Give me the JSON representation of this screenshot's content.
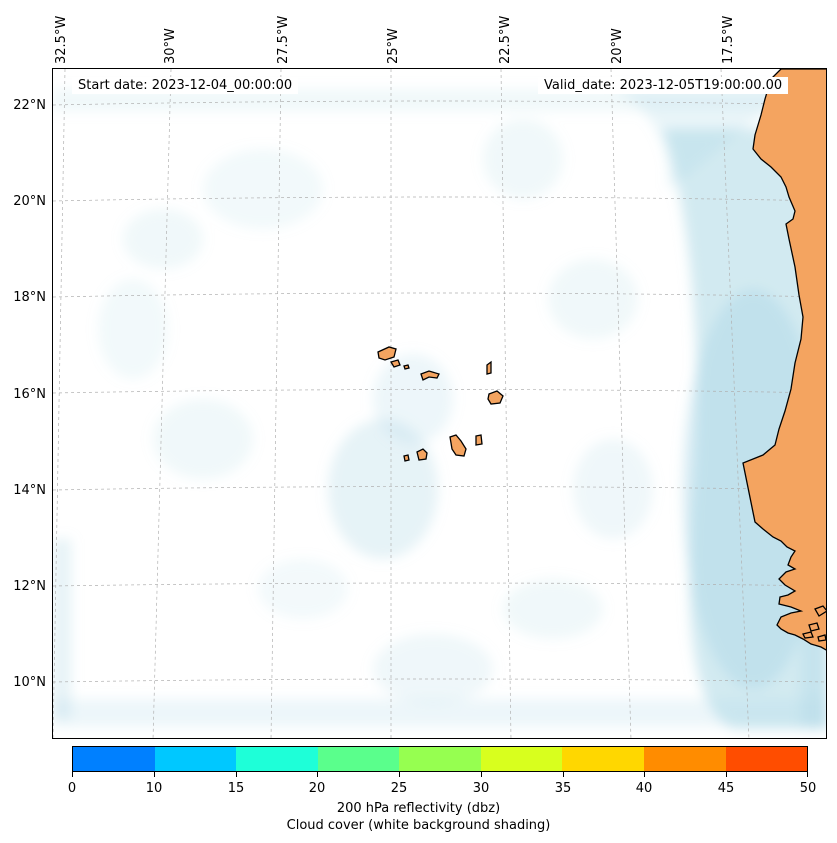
{
  "map": {
    "start_date": "Start date: 2023-12-04_00:00:00",
    "valid_date": "Valid_date: 2023-12-05T19:00:00.00",
    "lon_labels": [
      "32.5°W",
      "30°W",
      "27.5°W",
      "25°W",
      "22.5°W",
      "20°W",
      "17.5°W"
    ],
    "lat_labels": [
      "22°N",
      "20°N",
      "18°N",
      "16°N",
      "14°N",
      "12°N",
      "10°N"
    ],
    "colors": {
      "land": "#f4a460",
      "coastline": "#000000",
      "cloud": "#add8e6",
      "gridline": "#b0b0b0"
    }
  },
  "colorbar": {
    "ticks": [
      "0",
      "10",
      "15",
      "20",
      "25",
      "30",
      "35",
      "40",
      "45",
      "50"
    ],
    "colors": [
      "#0080ff",
      "#00c8ff",
      "#1effd8",
      "#5aff8c",
      "#96ff50",
      "#d8ff1e",
      "#ffd700",
      "#ff8c00",
      "#ff4d00"
    ],
    "label_line1": "200 hPa reflectivity (dbz)",
    "label_line2": "Cloud cover (white background shading)"
  }
}
